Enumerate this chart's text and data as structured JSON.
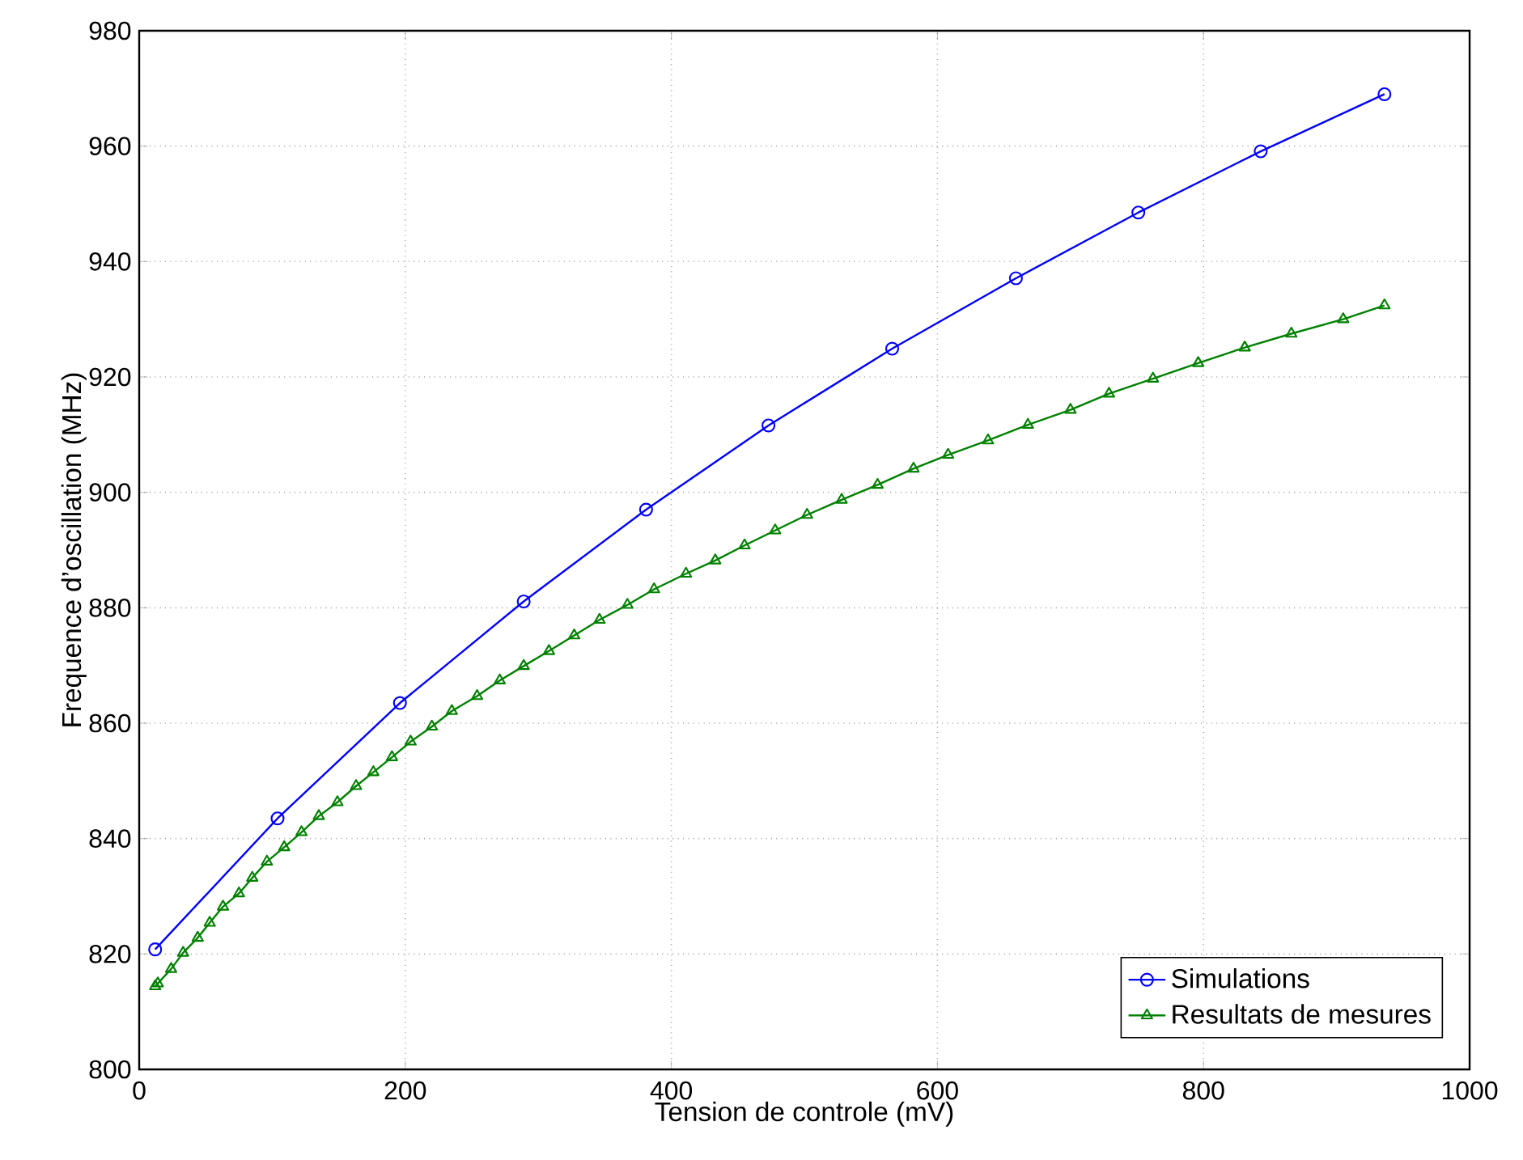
{
  "chart_data": {
    "type": "line",
    "xlabel": "Tension de controle (mV)",
    "ylabel": "Frequence d’oscillation (MHz)",
    "xlim": [
      0,
      1000
    ],
    "xticks": [
      0,
      200,
      400,
      600,
      800,
      1000
    ],
    "ylim": [
      800,
      980
    ],
    "yticks": [
      800,
      820,
      840,
      860,
      880,
      900,
      920,
      940,
      960,
      980
    ],
    "grid": true,
    "legend": "bottom right",
    "series": [
      {
        "name": "Simulations",
        "color": "#0000ff",
        "marker": "circle",
        "x": [
          12,
          104,
          196,
          289,
          381,
          473,
          566,
          659,
          751,
          843,
          936
        ],
        "values": [
          820.8,
          843.5,
          863.5,
          881.1,
          897.0,
          911.6,
          924.9,
          937.1,
          948.5,
          959.1,
          969.0
        ]
      },
      {
        "name": "Resultats de mesures",
        "color": "#008000",
        "marker": "triangle",
        "x": [
          12,
          14,
          24,
          33,
          44,
          53,
          63,
          75,
          85,
          96,
          109,
          122,
          135,
          149,
          163,
          176,
          190,
          204,
          220,
          235,
          254,
          271,
          289,
          308,
          327,
          346,
          367,
          387,
          411,
          433,
          455,
          478,
          502,
          528,
          555,
          582,
          608,
          638,
          668,
          700,
          729,
          762,
          796,
          831,
          866,
          905,
          936
        ],
        "values": [
          814.4,
          814.9,
          817.4,
          820.2,
          822.8,
          825.4,
          828.2,
          830.5,
          833.2,
          836.0,
          838.5,
          841.1,
          843.9,
          846.3,
          849.1,
          851.5,
          854.1,
          856.8,
          859.4,
          862.1,
          864.7,
          867.4,
          869.9,
          872.5,
          875.2,
          877.9,
          880.5,
          883.2,
          885.9,
          888.2,
          890.8,
          893.4,
          896.1,
          898.7,
          901.3,
          904.1,
          906.5,
          909.0,
          911.7,
          914.3,
          917.1,
          919.7,
          922.4,
          925.1,
          927.5,
          930.0,
          932.4
        ]
      }
    ]
  }
}
